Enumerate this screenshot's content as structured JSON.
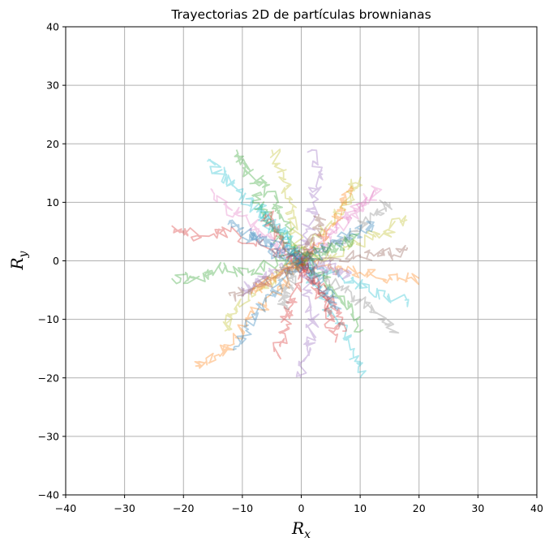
{
  "chart_data": {
    "type": "line",
    "title": "Trayectorias 2D de partículas brownianas",
    "xlabel": {
      "base": "R",
      "sub": "x"
    },
    "ylabel": {
      "base": "R",
      "sub": "y"
    },
    "xlim": [
      -40,
      40
    ],
    "ylim": [
      -40,
      40
    ],
    "xticks": [
      -40,
      -30,
      -20,
      -10,
      0,
      10,
      20,
      30,
      40
    ],
    "yticks": [
      -40,
      -30,
      -20,
      -10,
      0,
      10,
      20,
      30,
      40
    ],
    "xtick_labels": [
      "−40",
      "−30",
      "−20",
      "−10",
      "0",
      "10",
      "20",
      "30",
      "40"
    ],
    "ytick_labels": [
      "−40",
      "−30",
      "−20",
      "−10",
      "0",
      "10",
      "20",
      "30",
      "40"
    ],
    "grid": true,
    "line_alpha": 0.35,
    "palette": [
      "#1f77b4",
      "#ff7f0e",
      "#2ca02c",
      "#d62728",
      "#9467bd",
      "#8c564b",
      "#e377c2",
      "#7f7f7f",
      "#bcbd22",
      "#17becf"
    ],
    "series": [
      {
        "color": "#d62728",
        "x": [
          0,
          -5,
          -12,
          -17,
          -22
        ],
        "y": [
          0,
          2,
          5,
          4,
          6
        ]
      },
      {
        "color": "#ff7f0e",
        "x": [
          0,
          -3,
          -8,
          -11,
          -14,
          -18
        ],
        "y": [
          0,
          -4,
          -9,
          -13,
          -16,
          -18
        ]
      },
      {
        "color": "#2ca02c",
        "x": [
          0,
          -4,
          -9,
          -14,
          -18,
          -22
        ],
        "y": [
          0,
          0,
          -2,
          -1,
          -3,
          -3
        ]
      },
      {
        "color": "#17becf",
        "x": [
          0,
          -4,
          -8,
          -11,
          -13,
          -16
        ],
        "y": [
          0,
          5,
          9,
          12,
          15,
          17
        ]
      },
      {
        "color": "#2ca02c",
        "x": [
          0,
          -2,
          -4,
          -6,
          -9,
          -11
        ],
        "y": [
          0,
          5,
          9,
          13,
          15,
          19
        ]
      },
      {
        "color": "#bcbd22",
        "x": [
          0,
          -1,
          -2,
          -3,
          -5
        ],
        "y": [
          0,
          5,
          10,
          15,
          19
        ]
      },
      {
        "color": "#9467bd",
        "x": [
          0,
          1,
          2,
          3,
          2
        ],
        "y": [
          0,
          5,
          10,
          15,
          19
        ]
      },
      {
        "color": "#bcbd22",
        "x": [
          0,
          3,
          6,
          9,
          10
        ],
        "y": [
          0,
          4,
          8,
          12,
          14
        ]
      },
      {
        "color": "#e377c2",
        "x": [
          0,
          4,
          8,
          11,
          13
        ],
        "y": [
          0,
          3,
          7,
          10,
          12
        ]
      },
      {
        "color": "#7f7f7f",
        "x": [
          0,
          5,
          9,
          13,
          15
        ],
        "y": [
          0,
          2,
          5,
          8,
          10
        ]
      },
      {
        "color": "#bcbd22",
        "x": [
          0,
          5,
          10,
          14,
          18
        ],
        "y": [
          0,
          1,
          3,
          5,
          7
        ]
      },
      {
        "color": "#8c564b",
        "x": [
          0,
          5,
          10,
          14,
          18
        ],
        "y": [
          0,
          0,
          1,
          1,
          2
        ]
      },
      {
        "color": "#ff7f0e",
        "x": [
          0,
          5,
          10,
          15,
          20
        ],
        "y": [
          0,
          -1,
          -2,
          -3,
          -3
        ]
      },
      {
        "color": "#17becf",
        "x": [
          0,
          5,
          10,
          14,
          18
        ],
        "y": [
          0,
          -2,
          -4,
          -6,
          -7
        ]
      },
      {
        "color": "#7f7f7f",
        "x": [
          0,
          4,
          9,
          13,
          16
        ],
        "y": [
          0,
          -3,
          -6,
          -9,
          -12
        ]
      },
      {
        "color": "#17becf",
        "x": [
          0,
          3,
          6,
          9,
          10
        ],
        "y": [
          0,
          -5,
          -10,
          -15,
          -20
        ]
      },
      {
        "color": "#9467bd",
        "x": [
          0,
          1,
          2,
          1,
          0
        ],
        "y": [
          0,
          -5,
          -10,
          -15,
          -20
        ]
      },
      {
        "color": "#d62728",
        "x": [
          0,
          -1,
          -2,
          -3,
          -4
        ],
        "y": [
          0,
          -4,
          -8,
          -12,
          -16
        ]
      },
      {
        "color": "#1f77b4",
        "x": [
          0,
          -3,
          -6,
          -9,
          -11
        ],
        "y": [
          0,
          -3,
          -7,
          -11,
          -15
        ]
      },
      {
        "color": "#bcbd22",
        "x": [
          0,
          -4,
          -7,
          -11,
          -13
        ],
        "y": [
          0,
          -2,
          -5,
          -8,
          -12
        ]
      },
      {
        "color": "#e377c2",
        "x": [
          0,
          -4,
          -7,
          -11,
          -15
        ],
        "y": [
          0,
          2,
          5,
          8,
          12
        ]
      },
      {
        "color": "#e377c2",
        "x": [
          0,
          3,
          6,
          9,
          12
        ],
        "y": [
          0,
          3,
          6,
          9,
          11
        ]
      },
      {
        "color": "#1f77b4",
        "x": [
          0,
          -4,
          -7,
          -10,
          -12
        ],
        "y": [
          0,
          1,
          3,
          5,
          7
        ]
      },
      {
        "color": "#2ca02c",
        "x": [
          0,
          3,
          5,
          8,
          10
        ],
        "y": [
          0,
          -2,
          -5,
          -8,
          -12
        ]
      },
      {
        "color": "#8c564b",
        "x": [
          0,
          -2,
          -5,
          -9,
          -12
        ],
        "y": [
          0,
          -2,
          -3,
          -5,
          -6
        ]
      },
      {
        "color": "#ff7f0e",
        "x": [
          0,
          3,
          5,
          7,
          8
        ],
        "y": [
          0,
          3,
          6,
          9,
          12
        ]
      },
      {
        "color": "#1f77b4",
        "x": [
          0,
          4,
          7,
          10,
          12
        ],
        "y": [
          0,
          2,
          4,
          5,
          6
        ]
      },
      {
        "color": "#d62728",
        "x": [
          0,
          2,
          4,
          6,
          7
        ],
        "y": [
          0,
          -3,
          -6,
          -9,
          -12
        ]
      },
      {
        "color": "#2ca02c",
        "x": [
          0,
          -3,
          -5,
          -7,
          -8
        ],
        "y": [
          0,
          3,
          6,
          9,
          11
        ]
      },
      {
        "color": "#9467bd",
        "x": [
          0,
          -3,
          -6,
          -8,
          -10
        ],
        "y": [
          0,
          -1,
          -3,
          -4,
          -6
        ]
      },
      {
        "color": "#d62728",
        "x": [
          0,
          -2,
          -3,
          -5,
          -6
        ],
        "y": [
          0,
          2,
          4,
          6,
          8
        ]
      },
      {
        "color": "#1f77b4",
        "x": [
          0,
          2,
          3,
          5,
          6
        ],
        "y": [
          0,
          -2,
          -4,
          -6,
          -8
        ]
      },
      {
        "color": "#ff7f0e",
        "x": [
          0,
          -2,
          -5,
          -7,
          -8
        ],
        "y": [
          0,
          -1,
          -3,
          -4,
          -5
        ]
      },
      {
        "color": "#2ca02c",
        "x": [
          0,
          2,
          5,
          7,
          9
        ],
        "y": [
          0,
          1,
          2,
          3,
          4
        ]
      },
      {
        "color": "#8c564b",
        "x": [
          0,
          1,
          2,
          3,
          3
        ],
        "y": [
          0,
          2,
          4,
          6,
          8
        ]
      },
      {
        "color": "#7f7f7f",
        "x": [
          0,
          -1,
          -2,
          -3,
          -3
        ],
        "y": [
          0,
          -2,
          -4,
          -6,
          -8
        ]
      },
      {
        "color": "#9467bd",
        "x": [
          0,
          3,
          5,
          7,
          8
        ],
        "y": [
          0,
          -1,
          -1,
          -2,
          -2
        ]
      },
      {
        "color": "#17becf",
        "x": [
          0,
          -2,
          -4,
          -6,
          -7
        ],
        "y": [
          0,
          3,
          5,
          7,
          9
        ]
      },
      {
        "color": "#d62728",
        "x": [
          0,
          2,
          4,
          5,
          6
        ],
        "y": [
          0,
          -4,
          -7,
          -10,
          -13
        ]
      },
      {
        "color": "#1f77b4",
        "x": [
          0,
          -3,
          -5,
          -8,
          -10
        ],
        "y": [
          0,
          2,
          3,
          4,
          4
        ]
      }
    ]
  }
}
